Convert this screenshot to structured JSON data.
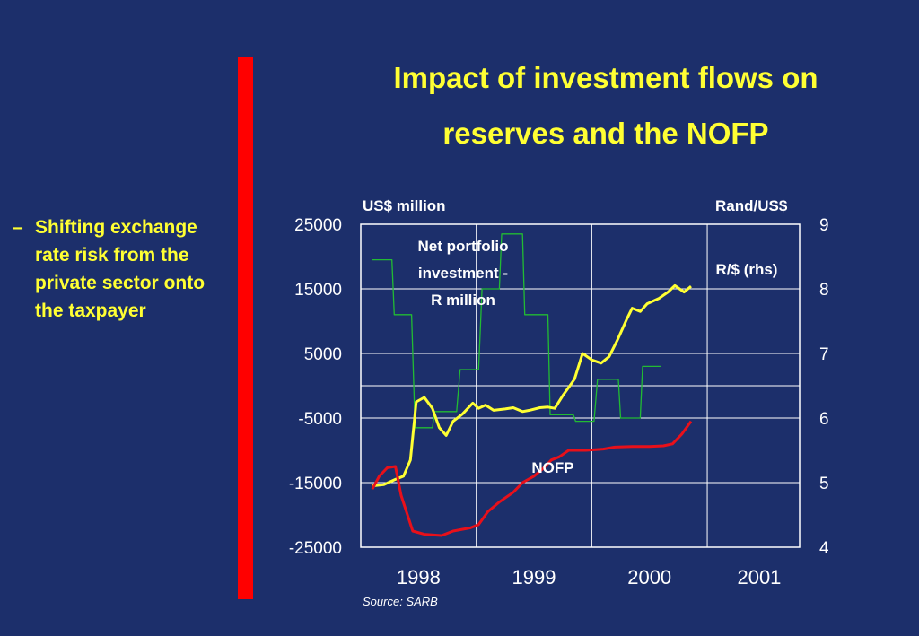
{
  "slide": {
    "title_line1": "Impact of investment flows on",
    "title_line2": "reserves and the NOFP",
    "bullet_dash": "–",
    "bullet_text": "Shifting exchange rate risk from the private sector onto the taxpayer",
    "source": "Source: SARB"
  },
  "colors": {
    "background": "#1c2f6b",
    "title": "#ffff33",
    "accent_bar": "#ff0000",
    "rand_line": "#ffff33",
    "nofp_line": "#e8101a",
    "portfolio_line": "#22bb33"
  },
  "chart_data": {
    "type": "line",
    "ylabel_left": "US$ million",
    "ylabel_right": "Rand/US$",
    "ylim_left": [
      -25000,
      25000
    ],
    "ylim_right": [
      4,
      9
    ],
    "yticks_left": [
      "25000",
      "15000",
      "5000",
      "-5000",
      "-15000",
      "-25000"
    ],
    "yticks_right": [
      "9",
      "8",
      "7",
      "6",
      "5",
      "4"
    ],
    "xticks": [
      "1998",
      "1999",
      "2000",
      "2001"
    ],
    "grid": true,
    "series": [
      {
        "name": "Net portfolio investment - R million",
        "label_lines": [
          "Net portfolio",
          "investment -",
          "R million"
        ],
        "axis": "left",
        "color": "#22bb33",
        "points": [
          [
            1997.6,
            19500
          ],
          [
            1997.77,
            19500
          ],
          [
            1997.79,
            11000
          ],
          [
            1997.94,
            11000
          ],
          [
            1997.97,
            -6500
          ],
          [
            1998.12,
            -6500
          ],
          [
            1998.14,
            -4000
          ],
          [
            1998.33,
            -4000
          ],
          [
            1998.36,
            2500
          ],
          [
            1998.52,
            2500
          ],
          [
            1998.55,
            15000
          ],
          [
            1998.7,
            15000
          ],
          [
            1998.72,
            23500
          ],
          [
            1998.9,
            23500
          ],
          [
            1998.92,
            11000
          ],
          [
            1999.12,
            11000
          ],
          [
            1999.14,
            -4500
          ],
          [
            1999.34,
            -4500
          ],
          [
            1999.36,
            -5500
          ],
          [
            1999.52,
            -5500
          ],
          [
            1999.55,
            1000
          ],
          [
            1999.73,
            1000
          ],
          [
            1999.75,
            -5000
          ],
          [
            1999.92,
            -5000
          ],
          [
            1999.94,
            3000
          ],
          [
            2000.1,
            3000
          ]
        ]
      },
      {
        "name": "R/$ (rhs)",
        "axis": "right",
        "color": "#ffff33",
        "points": [
          [
            1997.6,
            4.95
          ],
          [
            1997.7,
            4.97
          ],
          [
            1997.8,
            5.05
          ],
          [
            1997.87,
            5.1
          ],
          [
            1997.93,
            5.35
          ],
          [
            1997.98,
            6.25
          ],
          [
            1998.05,
            6.32
          ],
          [
            1998.12,
            6.15
          ],
          [
            1998.18,
            5.85
          ],
          [
            1998.24,
            5.73
          ],
          [
            1998.3,
            5.95
          ],
          [
            1998.38,
            6.06
          ],
          [
            1998.47,
            6.23
          ],
          [
            1998.52,
            6.15
          ],
          [
            1998.58,
            6.2
          ],
          [
            1998.65,
            6.12
          ],
          [
            1998.75,
            6.14
          ],
          [
            1998.82,
            6.16
          ],
          [
            1998.9,
            6.1
          ],
          [
            1998.96,
            6.12
          ],
          [
            1999.05,
            6.16
          ],
          [
            1999.12,
            6.17
          ],
          [
            1999.18,
            6.15
          ],
          [
            1999.25,
            6.35
          ],
          [
            1999.35,
            6.6
          ],
          [
            1999.42,
            7.0
          ],
          [
            1999.5,
            6.9
          ],
          [
            1999.58,
            6.85
          ],
          [
            1999.65,
            6.95
          ],
          [
            1999.72,
            7.2
          ],
          [
            1999.8,
            7.52
          ],
          [
            1999.85,
            7.7
          ],
          [
            1999.92,
            7.65
          ],
          [
            1999.98,
            7.77
          ],
          [
            2000.08,
            7.85
          ],
          [
            2000.16,
            7.95
          ],
          [
            2000.22,
            8.05
          ],
          [
            2000.3,
            7.95
          ],
          [
            2000.36,
            8.04
          ]
        ]
      },
      {
        "name": "NOFP",
        "axis": "left",
        "color": "#e8101a",
        "points": [
          [
            1997.6,
            -16000
          ],
          [
            1997.66,
            -14000
          ],
          [
            1997.73,
            -12700
          ],
          [
            1997.8,
            -12500
          ],
          [
            1997.85,
            -17000
          ],
          [
            1997.95,
            -22500
          ],
          [
            1998.05,
            -23000
          ],
          [
            1998.2,
            -23200
          ],
          [
            1998.3,
            -22500
          ],
          [
            1998.45,
            -22000
          ],
          [
            1998.52,
            -21500
          ],
          [
            1998.6,
            -19500
          ],
          [
            1998.7,
            -18000
          ],
          [
            1998.82,
            -16500
          ],
          [
            1998.9,
            -15000
          ],
          [
            1999.0,
            -14000
          ],
          [
            1999.08,
            -12800
          ],
          [
            1999.15,
            -11500
          ],
          [
            1999.22,
            -11000
          ],
          [
            1999.3,
            -10000
          ],
          [
            1999.45,
            -10000
          ],
          [
            1999.6,
            -9800
          ],
          [
            1999.7,
            -9500
          ],
          [
            1999.85,
            -9400
          ],
          [
            2000.0,
            -9400
          ],
          [
            2000.12,
            -9300
          ],
          [
            2000.2,
            -9000
          ],
          [
            2000.28,
            -7500
          ],
          [
            2000.36,
            -5500
          ]
        ]
      }
    ]
  }
}
